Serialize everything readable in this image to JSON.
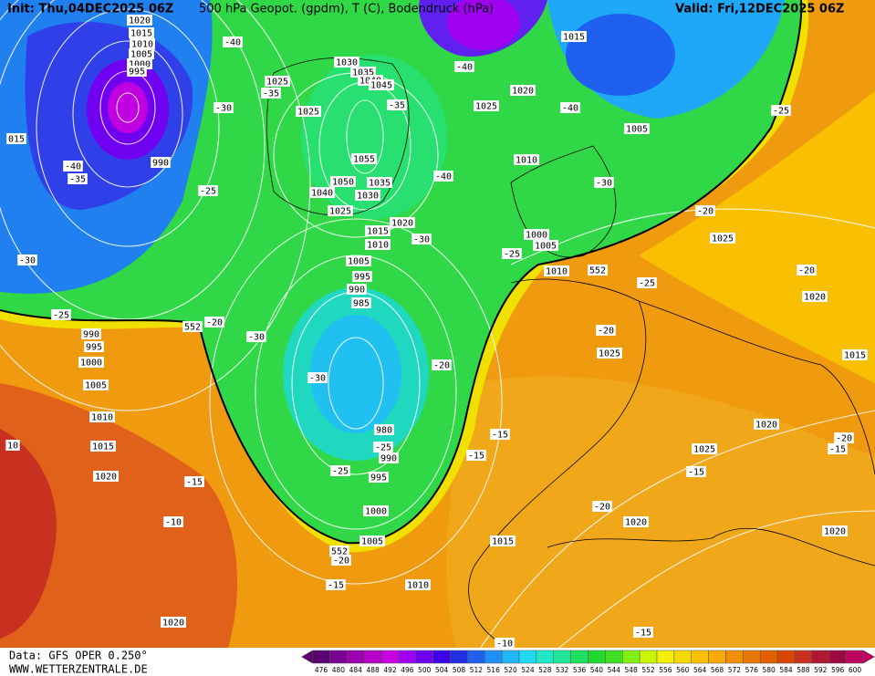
{
  "header": {
    "init": "Init: Thu,04DEC2025 06Z",
    "title": "500 hPa Geopot. (gpdm), T (C), Bodendruck (hPa)",
    "valid": "Valid: Fri,12DEC2025 06Z"
  },
  "footer": {
    "source": "Data: GFS OPER 0.250°",
    "site": "WWW.WETTERZENTRALE.DE"
  },
  "legend": {
    "ticks": [
      476,
      480,
      484,
      488,
      492,
      496,
      500,
      504,
      508,
      512,
      516,
      520,
      524,
      528,
      532,
      536,
      540,
      544,
      548,
      552,
      556,
      560,
      564,
      568,
      572,
      576,
      580,
      584,
      588,
      592,
      596,
      600
    ],
    "colors": [
      "#5a0070",
      "#7a0090",
      "#9a00b0",
      "#b400c8",
      "#c800e0",
      "#a000f0",
      "#7000f0",
      "#4000e8",
      "#2030e0",
      "#2060f0",
      "#2090f8",
      "#20b8f8",
      "#20d8f0",
      "#20e8c8",
      "#20e898",
      "#20e060",
      "#20d830",
      "#40e020",
      "#80f010",
      "#c8f800",
      "#f0f000",
      "#f8d800",
      "#f8c000",
      "#f8a800",
      "#f09000",
      "#e87800",
      "#e06000",
      "#d84800",
      "#c83020",
      "#b01830",
      "#a00840",
      "#c00060"
    ]
  },
  "map": {
    "labels": [
      "1020",
      "1015",
      "1010",
      "1005",
      "1000",
      "995",
      "015",
      "990",
      "-40",
      "-35",
      "-30",
      "-25",
      "990",
      "995",
      "1000",
      "1005",
      "1010",
      "1015",
      "1020",
      "10",
      "-15",
      "-10",
      "1020",
      "-40",
      "-35",
      "1025",
      "-30",
      "1025",
      "1030",
      "1035",
      "1040",
      "1045",
      "-35",
      "1055",
      "1050",
      "1035",
      "1040",
      "1030",
      "-25",
      "1025",
      "1020",
      "1015",
      "1010",
      "-30",
      "1005",
      "995",
      "990",
      "985",
      "552",
      "-20",
      "-30",
      "-30",
      "-20",
      "980",
      "-25",
      "990",
      "-25",
      "995",
      "1000",
      "1005",
      "552",
      "-20",
      "-15",
      "1010",
      "-15",
      "-15",
      "1015",
      "-10",
      "-15",
      "1020",
      "-20",
      "1025",
      "-20",
      "-25",
      "1010",
      "552",
      "-25",
      "1000",
      "1005",
      "1010",
      "-30",
      "1005",
      "-40",
      "1020",
      "1025",
      "-40",
      "1015",
      "-40",
      "-25",
      "-20",
      "1025",
      "-20",
      "1020",
      "1015",
      "1020",
      "1025",
      "-15",
      "-20",
      "-15",
      "1020"
    ]
  }
}
